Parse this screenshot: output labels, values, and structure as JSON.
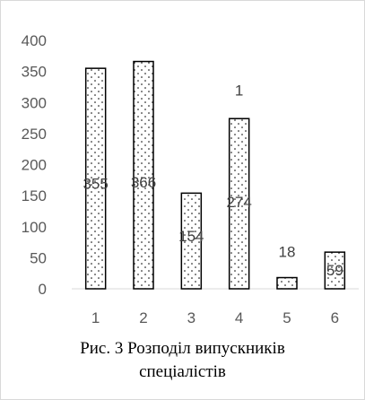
{
  "chart_data": {
    "type": "bar",
    "categories": [
      "1",
      "2",
      "3",
      "4",
      "5",
      "6"
    ],
    "values": [
      355,
      366,
      154,
      274,
      18,
      59
    ],
    "data_labels": [
      "355",
      "366",
      "154",
      "274",
      "18",
      "59"
    ],
    "extra_annotation": "1",
    "ylim": [
      0,
      400
    ],
    "yticks": [
      "0",
      "50",
      "100",
      "150",
      "200",
      "250",
      "300",
      "350",
      "400"
    ],
    "grid": false,
    "bar_fill": "dotted pattern",
    "bar_color": "#000000",
    "caption_line1": "Рис. 3 Розподіл випускників",
    "caption_line2": "спеціалістів"
  }
}
